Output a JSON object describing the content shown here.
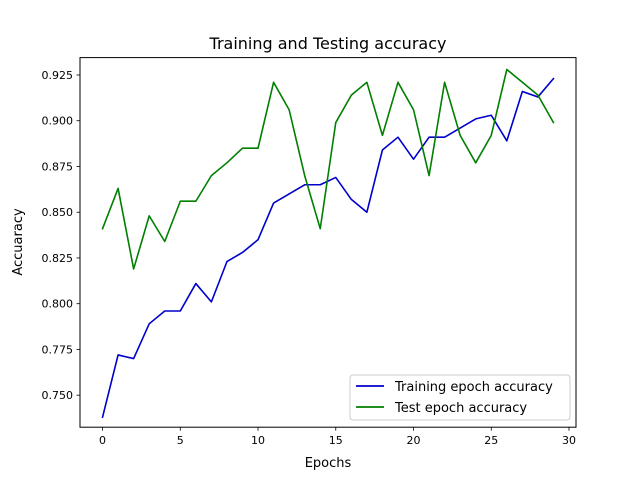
{
  "chart_data": {
    "type": "line",
    "title": "Training and Testing accuracy",
    "xlabel": "Epochs",
    "ylabel": "Accuaracy",
    "xlim": [
      -1.45,
      30.45
    ],
    "ylim": [
      0.7325,
      0.9345
    ],
    "xticks": [
      0,
      5,
      10,
      15,
      20,
      25,
      30
    ],
    "xtick_labels": [
      "0",
      "5",
      "10",
      "15",
      "20",
      "25",
      "30"
    ],
    "yticks": [
      0.75,
      0.775,
      0.8,
      0.825,
      0.85,
      0.875,
      0.9,
      0.925
    ],
    "ytick_labels": [
      "0.750",
      "0.775",
      "0.800",
      "0.825",
      "0.850",
      "0.875",
      "0.900",
      "0.925"
    ],
    "grid": false,
    "legend_position": "lower-right",
    "x": [
      0,
      1,
      2,
      3,
      4,
      5,
      6,
      7,
      8,
      9,
      10,
      11,
      12,
      13,
      14,
      15,
      16,
      17,
      18,
      19,
      20,
      21,
      22,
      23,
      24,
      25,
      26,
      27,
      28,
      29
    ],
    "series": [
      {
        "name": "Training epoch accuracy",
        "color": "#0000cc",
        "values": [
          0.738,
          0.772,
          0.77,
          0.789,
          0.796,
          0.796,
          0.811,
          0.801,
          0.823,
          0.828,
          0.835,
          0.855,
          0.86,
          0.865,
          0.865,
          0.869,
          0.857,
          0.85,
          0.884,
          0.891,
          0.879,
          0.891,
          0.891,
          0.896,
          0.901,
          0.903,
          0.889,
          0.916,
          0.913,
          0.923
        ]
      },
      {
        "name": "Test epoch accuracy",
        "color": "#007f00",
        "values": [
          0.841,
          0.863,
          0.819,
          0.848,
          0.834,
          0.856,
          0.856,
          0.87,
          0.877,
          0.885,
          0.885,
          0.921,
          0.906,
          0.87,
          0.841,
          0.899,
          0.914,
          0.921,
          0.892,
          0.921,
          0.906,
          0.87,
          0.921,
          0.892,
          0.877,
          0.892,
          0.928,
          0.921,
          0.914,
          0.899
        ]
      }
    ]
  }
}
